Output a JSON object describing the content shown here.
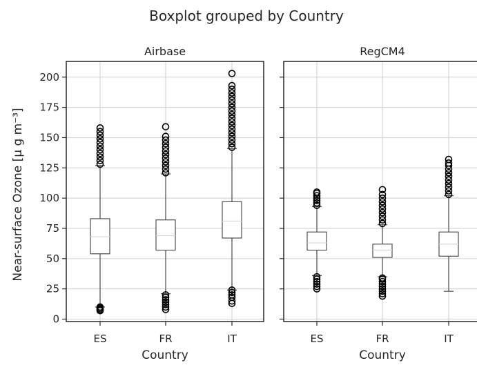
{
  "chart_data": {
    "type": "boxplot",
    "suptitle": "Boxplot grouped by Country",
    "ylabel": "Near-surface Ozone [μ g m⁻³]",
    "ylim": [
      -2,
      213
    ],
    "yticks": [
      0,
      25,
      50,
      75,
      100,
      125,
      150,
      175,
      200
    ],
    "categories": [
      "ES",
      "FR",
      "IT"
    ],
    "sharey": true,
    "grid": true,
    "panels": [
      {
        "title": "Airbase",
        "xlabel": "Country",
        "boxes": [
          {
            "category": "ES",
            "whislo": 10,
            "q1": 54,
            "med": 68,
            "q3": 83,
            "whishi": 127,
            "fliers_low": [
              7,
              8,
              9,
              10
            ],
            "fliers_high": [
              128,
              131,
              134,
              137,
              140,
              143,
              146,
              149,
              152,
              155,
              158
            ]
          },
          {
            "category": "FR",
            "whislo": 21,
            "q1": 57,
            "med": 69,
            "q3": 82,
            "whishi": 120,
            "fliers_low": [
              8,
              10,
              12,
              14,
              16,
              18,
              20
            ],
            "fliers_high": [
              121,
              124,
              127,
              130,
              133,
              136,
              139,
              142,
              145,
              148,
              151,
              159
            ]
          },
          {
            "category": "IT",
            "whislo": 24,
            "q1": 67,
            "med": 81,
            "q3": 97,
            "whishi": 141,
            "fliers_low": [
              13,
              15,
              18,
              20,
              22,
              24
            ],
            "fliers_high": [
              142,
              145,
              148,
              151,
              154,
              157,
              160,
              163,
              166,
              169,
              172,
              175,
              178,
              181,
              184,
              187,
              190,
              193,
              203
            ]
          }
        ]
      },
      {
        "title": "RegCM4",
        "xlabel": "Country",
        "boxes": [
          {
            "category": "ES",
            "whislo": 36,
            "q1": 57,
            "med": 63,
            "q3": 72,
            "whishi": 93,
            "fliers_low": [
              25,
              27,
              29,
              31,
              33,
              35
            ],
            "fliers_high": [
              94,
              96,
              98,
              100,
              102,
              104,
              105
            ]
          },
          {
            "category": "FR",
            "whislo": 35,
            "q1": 51,
            "med": 57,
            "q3": 62,
            "whishi": 78,
            "fliers_low": [
              19,
              21,
              23,
              25,
              27,
              29,
              31,
              33,
              34
            ],
            "fliers_high": [
              79,
              82,
              85,
              88,
              91,
              94,
              97,
              100,
              103,
              107
            ]
          },
          {
            "category": "IT",
            "whislo": 23,
            "q1": 52,
            "med": 62,
            "q3": 72,
            "whishi": 102,
            "fliers_low": [],
            "fliers_high": [
              103,
              106,
              109,
              112,
              115,
              118,
              121,
              124,
              127,
              129,
              132
            ]
          }
        ]
      }
    ]
  }
}
